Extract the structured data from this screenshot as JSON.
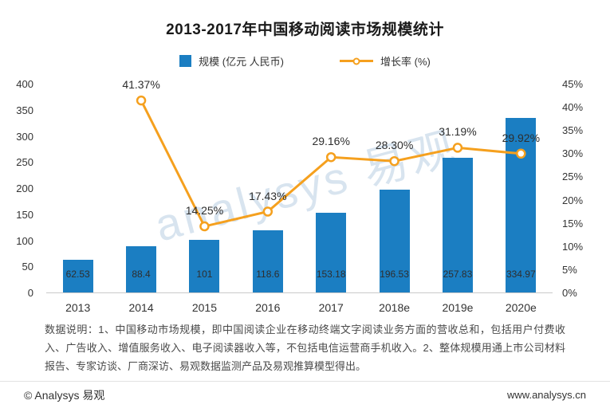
{
  "page": {
    "title": "2013-2017年中国移动阅读市场规模统计",
    "watermark": "analysys 易观",
    "note": "数据说明：1、中国移动市场规模，即中国阅读企业在移动终端文字阅读业务方面的营收总和，包括用户付费收入、广告收入、增值服务收入、电子阅读器收入等，不包括电信运营商手机收入。2、整体规模用通上市公司材料报告、专家访谈、厂商深访、易观数据监测产品及易观推算模型得出。",
    "footer_left": "© Analysys 易观",
    "footer_right": "www.analysys.cn"
  },
  "chart_data": {
    "type": "bar+line",
    "title": "2013-2017年中国移动阅读市场规模统计",
    "categories": [
      "2013",
      "2014",
      "2015",
      "2016",
      "2017",
      "2018e",
      "2019e",
      "2020e"
    ],
    "series": [
      {
        "name": "规模 (亿元 人民币)",
        "type": "bar",
        "axis": "left",
        "color": "#1B7EC2",
        "values": [
          62.53,
          88.4,
          101,
          118.6,
          153.18,
          196.53,
          257.83,
          334.97
        ],
        "labels": [
          "62.53",
          "88.4",
          "101",
          "118.6",
          "153.18",
          "196.53",
          "257.83",
          "334.97"
        ]
      },
      {
        "name": "增长率 (%)",
        "type": "line",
        "axis": "right",
        "color": "#F5A01E",
        "values": [
          null,
          41.37,
          14.25,
          17.43,
          29.16,
          28.3,
          31.19,
          29.92
        ],
        "labels": [
          "",
          "41.37%",
          "14.25%",
          "17.43%",
          "29.16%",
          "28.30%",
          "31.19%",
          "29.92%"
        ]
      }
    ],
    "left_axis": {
      "min": 0,
      "max": 400,
      "step": 50,
      "ticks": [
        "0",
        "50",
        "100",
        "150",
        "200",
        "250",
        "300",
        "350",
        "400"
      ]
    },
    "right_axis": {
      "min": 0,
      "max": 45,
      "step": 5,
      "suffix": "%",
      "ticks": [
        "0%",
        "5%",
        "10%",
        "15%",
        "20%",
        "25%",
        "30%",
        "35%",
        "40%",
        "45%"
      ]
    },
    "legend_position": "top",
    "grid": false
  }
}
